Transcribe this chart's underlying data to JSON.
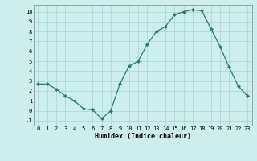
{
  "x": [
    0,
    1,
    2,
    3,
    4,
    5,
    6,
    7,
    8,
    9,
    10,
    11,
    12,
    13,
    14,
    15,
    16,
    17,
    18,
    19,
    20,
    21,
    22,
    23
  ],
  "y": [
    2.7,
    2.7,
    2.2,
    1.5,
    1.0,
    0.2,
    0.1,
    -0.8,
    0.0,
    2.7,
    4.5,
    5.0,
    6.7,
    8.0,
    8.5,
    9.7,
    10.0,
    10.2,
    10.1,
    8.3,
    6.5,
    4.4,
    2.5,
    1.5
  ],
  "xlabel": "Humidex (Indice chaleur)",
  "xlim": [
    -0.5,
    23.5
  ],
  "ylim": [
    -1.5,
    10.7
  ],
  "line_color": "#2d7d6b",
  "marker_color": "#2d7d6b",
  "bg_color": "#cceeed",
  "grid_color": "#aad4d2",
  "yticks": [
    -1,
    0,
    1,
    2,
    3,
    4,
    5,
    6,
    7,
    8,
    9,
    10
  ],
  "xticks": [
    0,
    1,
    2,
    3,
    4,
    5,
    6,
    7,
    8,
    9,
    10,
    11,
    12,
    13,
    14,
    15,
    16,
    17,
    18,
    19,
    20,
    21,
    22,
    23
  ]
}
